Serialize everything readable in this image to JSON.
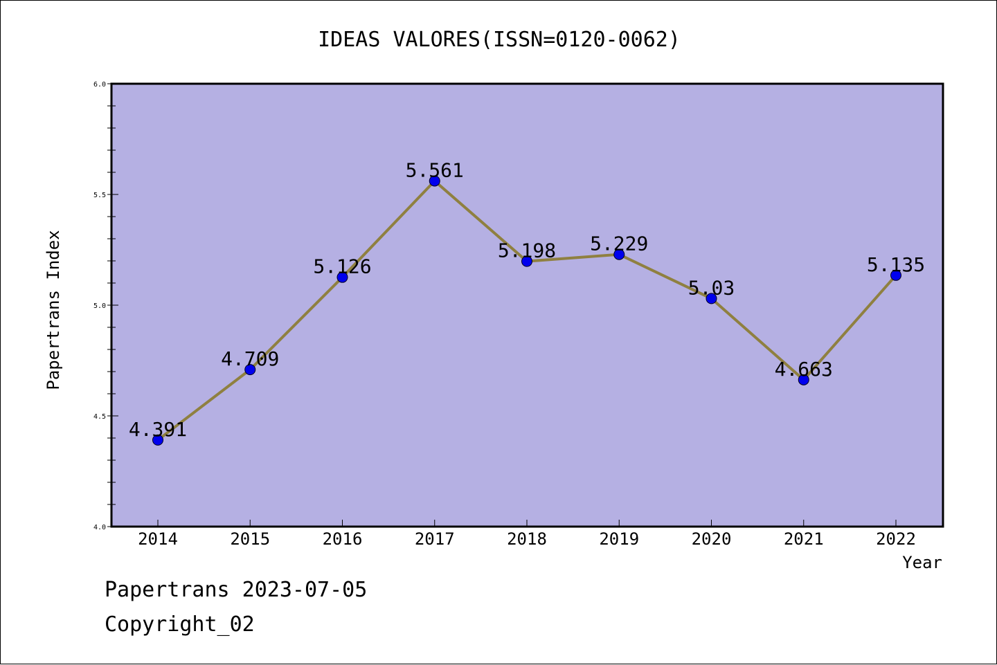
{
  "chart_data": {
    "type": "line",
    "title": "IDEAS VALORES(ISSN=0120-0062)",
    "xlabel": "Year",
    "ylabel": "Papertrans Index",
    "categories": [
      "2014",
      "2015",
      "2016",
      "2017",
      "2018",
      "2019",
      "2020",
      "2021",
      "2022"
    ],
    "series": [
      {
        "values": [
          4.391,
          4.709,
          5.126,
          5.561,
          5.198,
          5.229,
          5.03,
          4.663,
          5.135
        ],
        "labels": [
          "4.391",
          "4.709",
          "5.126",
          "5.561",
          "5.198",
          "5.229",
          "5.03",
          "4.663",
          "5.135"
        ]
      }
    ],
    "ylim": [
      4.0,
      6.0
    ],
    "yticks": [
      "4.0",
      "4.5",
      "5.0",
      "5.5",
      "6.0"
    ],
    "grid": false,
    "colors": {
      "plot_background": "#b5b0e3",
      "line": "#8f8040",
      "marker": "#0000ee"
    }
  },
  "footer": {
    "date_line": "Papertrans 2023-07-05",
    "copyright_line": "Copyright_02"
  }
}
